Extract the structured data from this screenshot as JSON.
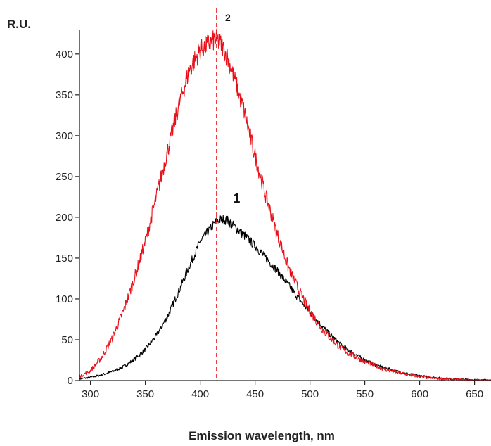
{
  "chart_data": {
    "type": "line",
    "xlabel": "Emission wavelength, nm",
    "ylabel": "R.U.",
    "xlim": [
      290,
      665
    ],
    "ylim": [
      0,
      430
    ],
    "xticks": [
      300,
      350,
      400,
      450,
      500,
      550,
      600,
      650
    ],
    "yticks": [
      0,
      50,
      100,
      150,
      200,
      250,
      300,
      350,
      400
    ],
    "grid": false,
    "legend": "none",
    "reference_line": {
      "x": 415,
      "color": "#e8111a",
      "style": "dashed",
      "label": "2"
    },
    "series": [
      {
        "label": "1",
        "color": "#000000",
        "noise": 6,
        "x": [
          290,
          300,
          310,
          320,
          330,
          340,
          350,
          360,
          370,
          380,
          390,
          400,
          410,
          415,
          420,
          425,
          430,
          440,
          450,
          460,
          470,
          480,
          490,
          500,
          510,
          520,
          530,
          540,
          550,
          560,
          570,
          580,
          590,
          600,
          610,
          620,
          630,
          640,
          650,
          665
        ],
        "y": [
          2,
          4,
          7,
          11,
          17,
          26,
          38,
          55,
          78,
          108,
          140,
          170,
          188,
          195,
          198,
          196,
          190,
          178,
          165,
          150,
          135,
          118,
          100,
          84,
          68,
          54,
          42,
          33,
          25,
          19,
          15,
          11,
          8,
          6,
          4,
          3,
          2,
          1.5,
          1,
          0.5
        ]
      },
      {
        "label": "2",
        "color": "#e8111a",
        "noise": 9,
        "x": [
          290,
          300,
          310,
          320,
          330,
          340,
          350,
          360,
          370,
          380,
          390,
          400,
          410,
          415,
          420,
          425,
          430,
          440,
          450,
          460,
          470,
          480,
          490,
          500,
          510,
          520,
          530,
          540,
          550,
          560,
          570,
          580,
          590,
          600,
          610,
          620,
          630,
          640,
          650,
          665
        ],
        "y": [
          5,
          12,
          28,
          52,
          85,
          125,
          170,
          225,
          280,
          335,
          380,
          405,
          415,
          418,
          410,
          395,
          375,
          330,
          275,
          225,
          180,
          140,
          110,
          85,
          65,
          50,
          38,
          30,
          23,
          18,
          13,
          10,
          7,
          5,
          3,
          2,
          1.5,
          1,
          0.5,
          0.3
        ]
      }
    ]
  }
}
